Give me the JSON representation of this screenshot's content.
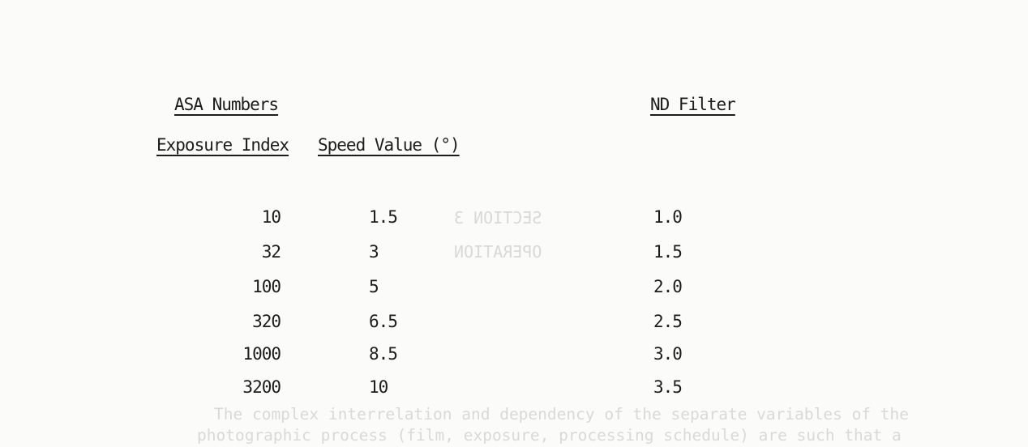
{
  "table": {
    "group_header": "ASA Numbers",
    "nd_header": "ND Filter",
    "columns": [
      "Exposure Index",
      "Speed Value (°)"
    ],
    "rows": [
      {
        "exposure_index": "10",
        "speed_value": "1.5",
        "nd_filter": "1.0"
      },
      {
        "exposure_index": "32",
        "speed_value": "3",
        "nd_filter": "1.5"
      },
      {
        "exposure_index": "100",
        "speed_value": "5",
        "nd_filter": "2.0"
      },
      {
        "exposure_index": "320",
        "speed_value": "6.5",
        "nd_filter": "2.5"
      },
      {
        "exposure_index": "1000",
        "speed_value": "8.5",
        "nd_filter": "3.0"
      },
      {
        "exposure_index": "3200",
        "speed_value": "10",
        "nd_filter": "3.5"
      }
    ]
  },
  "bleed_through": {
    "mirrored_1": "SECTION 3",
    "mirrored_2": "OPERATION",
    "line_1": "The complex interrelation and dependency of the separate variables of the",
    "line_2": "photographic process (film, exposure, processing schedule) are such that a"
  }
}
